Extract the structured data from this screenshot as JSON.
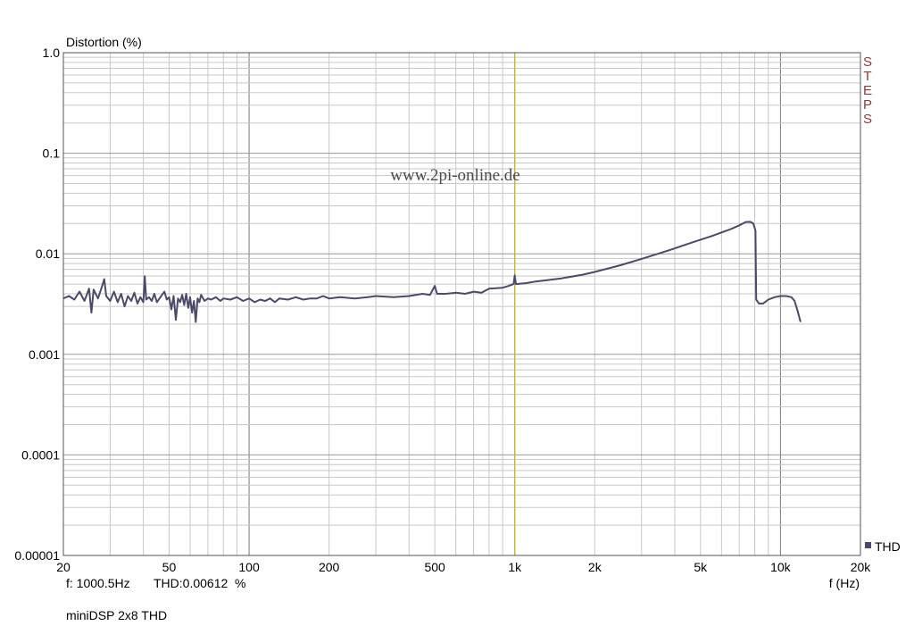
{
  "chart_data": {
    "type": "line",
    "ylabel": "Distortion (%)",
    "xlabel": "f (Hz)",
    "x_scale": "log",
    "y_scale": "log",
    "xlim": [
      20,
      20000
    ],
    "ylim": [
      1e-05,
      1
    ],
    "x_ticks": [
      {
        "value": 20,
        "label": "20"
      },
      {
        "value": 50,
        "label": "50"
      },
      {
        "value": 100,
        "label": "100"
      },
      {
        "value": 200,
        "label": "200"
      },
      {
        "value": 500,
        "label": "500"
      },
      {
        "value": 1000,
        "label": "1k"
      },
      {
        "value": 2000,
        "label": "2k"
      },
      {
        "value": 5000,
        "label": "5k"
      },
      {
        "value": 10000,
        "label": "10k"
      },
      {
        "value": 20000,
        "label": "20k"
      }
    ],
    "y_ticks": [
      {
        "value": 1,
        "label": "1.0"
      },
      {
        "value": 0.1,
        "label": "0.1"
      },
      {
        "value": 0.01,
        "label": "0.01"
      },
      {
        "value": 0.001,
        "label": "0.001"
      },
      {
        "value": 0.0001,
        "label": "0.0001"
      },
      {
        "value": 1e-05,
        "label": "0.00001"
      }
    ],
    "grid": true,
    "legend_position": "bottom-right",
    "marker_frequency": 1000,
    "watermark": "www.2pi-online.de",
    "side_label": "STEPS",
    "readout_frequency": "f: 1000.5Hz",
    "readout_value": "THD:0.00612  %",
    "caption": "miniDSP 2x8 THD",
    "colors": {
      "series": "#4a4a6a",
      "grid": "#c8c8c8",
      "decade_grid": "#777777",
      "marker": "#d4b800",
      "side_label": "#8b3a3a"
    },
    "series": [
      {
        "name": "THD",
        "points": [
          [
            20,
            0.0036
          ],
          [
            21,
            0.0038
          ],
          [
            22,
            0.0035
          ],
          [
            23,
            0.0042
          ],
          [
            24,
            0.0034
          ],
          [
            25,
            0.0045
          ],
          [
            25.5,
            0.0026
          ],
          [
            26,
            0.0044
          ],
          [
            27,
            0.0036
          ],
          [
            28,
            0.0048
          ],
          [
            28.5,
            0.0056
          ],
          [
            29,
            0.0038
          ],
          [
            30,
            0.0034
          ],
          [
            31,
            0.0042
          ],
          [
            32,
            0.0033
          ],
          [
            33,
            0.004
          ],
          [
            34,
            0.003
          ],
          [
            35,
            0.0038
          ],
          [
            36,
            0.0034
          ],
          [
            37,
            0.0041
          ],
          [
            38,
            0.0032
          ],
          [
            39,
            0.0037
          ],
          [
            40,
            0.0033
          ],
          [
            40.5,
            0.006
          ],
          [
            41,
            0.0035
          ],
          [
            42,
            0.0037
          ],
          [
            43,
            0.0034
          ],
          [
            44,
            0.004
          ],
          [
            45,
            0.0033
          ],
          [
            46,
            0.0036
          ],
          [
            47,
            0.0039
          ],
          [
            48,
            0.0042
          ],
          [
            49,
            0.0035
          ],
          [
            50,
            0.0037
          ],
          [
            51,
            0.0028
          ],
          [
            52,
            0.0038
          ],
          [
            53,
            0.0022
          ],
          [
            54,
            0.0036
          ],
          [
            55,
            0.0033
          ],
          [
            56,
            0.0039
          ],
          [
            57,
            0.0031
          ],
          [
            58,
            0.004
          ],
          [
            59,
            0.0029
          ],
          [
            60,
            0.0037
          ],
          [
            61,
            0.0026
          ],
          [
            62,
            0.0034
          ],
          [
            63,
            0.0021
          ],
          [
            64,
            0.0036
          ],
          [
            65,
            0.0033
          ],
          [
            66,
            0.0039
          ],
          [
            68,
            0.0034
          ],
          [
            70,
            0.0036
          ],
          [
            72,
            0.0035
          ],
          [
            75,
            0.0037
          ],
          [
            78,
            0.0034
          ],
          [
            80,
            0.0036
          ],
          [
            85,
            0.0035
          ],
          [
            90,
            0.0037
          ],
          [
            95,
            0.0034
          ],
          [
            100,
            0.0036
          ],
          [
            105,
            0.0033
          ],
          [
            110,
            0.0035
          ],
          [
            115,
            0.0034
          ],
          [
            120,
            0.0036
          ],
          [
            125,
            0.0033
          ],
          [
            130,
            0.0036
          ],
          [
            140,
            0.0035
          ],
          [
            150,
            0.0037
          ],
          [
            160,
            0.0035
          ],
          [
            170,
            0.0036
          ],
          [
            180,
            0.0036
          ],
          [
            190,
            0.0038
          ],
          [
            200,
            0.0036
          ],
          [
            220,
            0.0037
          ],
          [
            250,
            0.0036
          ],
          [
            280,
            0.0037
          ],
          [
            300,
            0.0038
          ],
          [
            350,
            0.0037
          ],
          [
            400,
            0.0038
          ],
          [
            450,
            0.004
          ],
          [
            480,
            0.0039
          ],
          [
            500,
            0.0048
          ],
          [
            510,
            0.004
          ],
          [
            550,
            0.004
          ],
          [
            600,
            0.0041
          ],
          [
            650,
            0.004
          ],
          [
            700,
            0.0042
          ],
          [
            750,
            0.0041
          ],
          [
            800,
            0.0045
          ],
          [
            900,
            0.0046
          ],
          [
            950,
            0.0048
          ],
          [
            990,
            0.005
          ],
          [
            1000,
            0.0061
          ],
          [
            1010,
            0.005
          ],
          [
            1100,
            0.0051
          ],
          [
            1200,
            0.0053
          ],
          [
            1500,
            0.0057
          ],
          [
            1800,
            0.0062
          ],
          [
            2000,
            0.0066
          ],
          [
            2500,
            0.0077
          ],
          [
            3000,
            0.0089
          ],
          [
            3500,
            0.0101
          ],
          [
            4000,
            0.0113
          ],
          [
            4500,
            0.0126
          ],
          [
            5000,
            0.0138
          ],
          [
            5500,
            0.015
          ],
          [
            6000,
            0.0163
          ],
          [
            6500,
            0.0176
          ],
          [
            7000,
            0.0192
          ],
          [
            7400,
            0.0207
          ],
          [
            7700,
            0.0208
          ],
          [
            7900,
            0.02
          ],
          [
            8050,
            0.017
          ],
          [
            8100,
            0.0035
          ],
          [
            8300,
            0.0032
          ],
          [
            8600,
            0.0032
          ],
          [
            9000,
            0.0035
          ],
          [
            9500,
            0.0037
          ],
          [
            10000,
            0.0038
          ],
          [
            10500,
            0.0038
          ],
          [
            11000,
            0.0037
          ],
          [
            11300,
            0.0034
          ],
          [
            11600,
            0.0027
          ],
          [
            11900,
            0.0021
          ]
        ]
      }
    ]
  }
}
